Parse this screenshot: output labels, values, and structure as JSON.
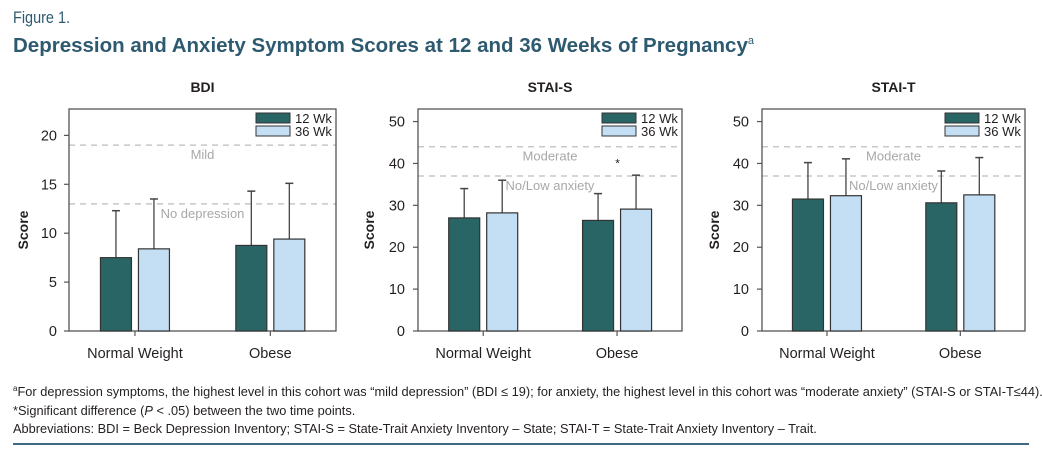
{
  "figure": {
    "label": "Figure 1.",
    "title": "Depression and Anxiety Symptom Scores at 12 and 36 Weeks of Pregnancy",
    "title_superscript": "a"
  },
  "colors": {
    "series_12wk": "#2a6565",
    "series_36wk": "#c4dff3",
    "reference_line": "#c8c8c8",
    "title": "#2e5a70"
  },
  "chart_data": [
    {
      "type": "bar",
      "title": "BDI",
      "xlabel": "",
      "ylabel": "Score",
      "ylim": [
        0,
        22.7
      ],
      "yticks": [
        0,
        5,
        10,
        15,
        20
      ],
      "categories": [
        "Normal Weight",
        "Obese"
      ],
      "series": [
        {
          "name": "12 Wk",
          "values": [
            7.5,
            8.75
          ],
          "error_upper": [
            12.3,
            14.3
          ]
        },
        {
          "name": "36 Wk",
          "values": [
            8.4,
            9.4
          ],
          "error_upper": [
            13.5,
            15.1
          ]
        }
      ],
      "reference_lines": [
        {
          "value": 19,
          "label": "Mild"
        },
        {
          "value": 13,
          "label": "No depression"
        }
      ],
      "annotations": [],
      "legend": "top-right",
      "grid": false
    },
    {
      "type": "bar",
      "title": "STAI-S",
      "xlabel": "",
      "ylabel": "Score",
      "ylim": [
        0,
        53
      ],
      "yticks": [
        0,
        10,
        20,
        30,
        40,
        50
      ],
      "categories": [
        "Normal Weight",
        "Obese"
      ],
      "series": [
        {
          "name": "12 Wk",
          "values": [
            27.0,
            26.4
          ],
          "error_upper": [
            34.0,
            32.8
          ]
        },
        {
          "name": "36 Wk",
          "values": [
            28.2,
            29.1
          ],
          "error_upper": [
            36.0,
            37.2
          ]
        }
      ],
      "reference_lines": [
        {
          "value": 44,
          "label": "Moderate"
        },
        {
          "value": 37,
          "label": "No/Low anxiety"
        }
      ],
      "annotations": [
        {
          "category": "Obese",
          "value": 40.5,
          "text": "*"
        }
      ],
      "legend": "top-right",
      "grid": false
    },
    {
      "type": "bar",
      "title": "STAI-T",
      "xlabel": "",
      "ylabel": "Score",
      "ylim": [
        0,
        53
      ],
      "yticks": [
        0,
        10,
        20,
        30,
        40,
        50
      ],
      "categories": [
        "Normal Weight",
        "Obese"
      ],
      "series": [
        {
          "name": "12 Wk",
          "values": [
            31.5,
            30.6
          ],
          "error_upper": [
            40.2,
            38.2
          ]
        },
        {
          "name": "36 Wk",
          "values": [
            32.3,
            32.5
          ],
          "error_upper": [
            41.1,
            41.4
          ]
        }
      ],
      "reference_lines": [
        {
          "value": 44,
          "label": "Moderate"
        },
        {
          "value": 37,
          "label": "No/Low anxiety"
        }
      ],
      "annotations": [],
      "legend": "top-right",
      "grid": false
    }
  ],
  "footnotes": {
    "note_a_marker": "a",
    "note_a": "For depression symptoms, the highest level in this cohort was “mild depression” (BDI ≤ 19); for anxiety, the highest level in this cohort was “moderate anxiety” (STAI-S or STAI-T≤44).",
    "significance_prefix": "*Significant difference (",
    "significance_p": "P",
    "significance_suffix": " < .05) between the two time points.",
    "abbreviations": "Abbreviations: BDI = Beck Depression Inventory; STAI-S = State-Trait Anxiety Inventory – State; STAI-T = State-Trait Anxiety Inventory – Trait."
  }
}
